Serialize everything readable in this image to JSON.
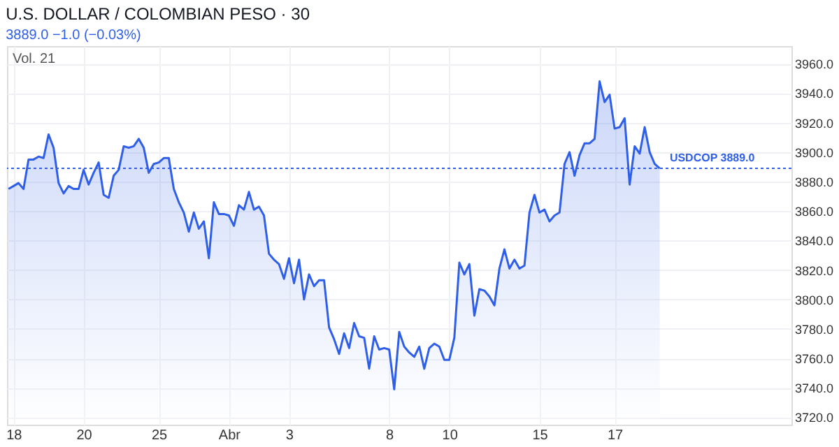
{
  "chart_data": {
    "type": "area",
    "title": "U.S. DOLLAR / COLOMBIAN PESO · 30",
    "subtitle": "3889.0 −1.0 (−0.03%)",
    "annotations": [
      "Vol. 21"
    ],
    "categories": [
      null,
      "18",
      null,
      null,
      null,
      null,
      null,
      null,
      null,
      null,
      null,
      null,
      null,
      null,
      null,
      "20",
      null,
      null,
      null,
      null,
      null,
      null,
      null,
      null,
      null,
      null,
      null,
      null,
      null,
      null,
      "25",
      null,
      null,
      null,
      null,
      null,
      null,
      null,
      null,
      null,
      null,
      null,
      null,
      null,
      "Abr",
      null,
      null,
      null,
      null,
      null,
      null,
      null,
      null,
      null,
      null,
      null,
      "3",
      null,
      null,
      null,
      null,
      null,
      null,
      null,
      null,
      null,
      null,
      null,
      null,
      null,
      null,
      null,
      null,
      null,
      null,
      null,
      "8",
      null,
      null,
      null,
      null,
      null,
      null,
      null,
      null,
      null,
      null,
      null,
      "10",
      null,
      null,
      null,
      null,
      null,
      null,
      null,
      null,
      null,
      null,
      null,
      null,
      null,
      null,
      null,
      null,
      null,
      "15",
      null,
      null,
      null,
      null,
      null,
      null,
      null,
      null,
      null,
      null,
      null,
      null,
      null,
      null,
      "17",
      null,
      null,
      null,
      null,
      null,
      null,
      null,
      null,
      null
    ],
    "series": [
      {
        "color": "#2f5fe8",
        "values": [
          3875,
          3877,
          3879,
          3875,
          3895,
          3895,
          3897,
          3896,
          3912,
          3903,
          3879,
          3872,
          3877,
          3875,
          3875,
          3888,
          3878,
          3886,
          3893,
          3871,
          3869,
          3884,
          3888,
          3904,
          3903,
          3904,
          3909,
          3903,
          3886,
          3892,
          3893,
          3896,
          3896,
          3875,
          3866,
          3859,
          3846,
          3859,
          3848,
          3853,
          3828,
          3866,
          3858,
          3858,
          3857,
          3850,
          3864,
          3861,
          3873,
          3861,
          3863,
          3857,
          3831,
          3827,
          3824,
          3814,
          3828,
          3811,
          3827,
          3800,
          3817,
          3809,
          3813,
          3813,
          3781,
          3773,
          3763,
          3777,
          3767,
          3784,
          3775,
          3774,
          3753,
          3775,
          3766,
          3767,
          3766,
          3739,
          3778,
          3768,
          3764,
          3761,
          3768,
          3753,
          3767,
          3770,
          3768,
          3759,
          3759,
          3774,
          3825,
          3817,
          3824,
          3789,
          3807,
          3806,
          3802,
          3796,
          3821,
          3834,
          3821,
          3827,
          3821,
          3823,
          3859,
          3871,
          3859,
          3861,
          3853,
          3857,
          3859,
          3892,
          3900,
          3884,
          3898,
          3906,
          3906,
          3909,
          3948,
          3934,
          3939,
          3916,
          3917,
          3923,
          3878,
          3904,
          3899,
          3917,
          3900,
          3892,
          3889
        ]
      }
    ],
    "ylim": [
      3715,
      3972
    ],
    "yticks": [
      {
        "value": 3720,
        "label": "3720.0"
      },
      {
        "value": 3740,
        "label": "3740.0"
      },
      {
        "value": 3760,
        "label": "3760.0"
      },
      {
        "value": 3780,
        "label": "3780.0"
      },
      {
        "value": 3800,
        "label": "3800.0"
      },
      {
        "value": 3820,
        "label": "3820.0"
      },
      {
        "value": 3840,
        "label": "3840.0"
      },
      {
        "value": 3860,
        "label": "3860.0"
      },
      {
        "value": 3880,
        "label": "3880.0"
      },
      {
        "value": 3900,
        "label": "3900.0"
      },
      {
        "value": 3920,
        "label": "3920.0"
      },
      {
        "value": 3940,
        "label": "3940.0"
      },
      {
        "value": 3960,
        "label": "3960.0"
      }
    ],
    "ref_lines": [
      {
        "axis": "y",
        "value": 3889,
        "label": "USDCOP 3889.0",
        "color": "#2f5fe8",
        "line_style": "dotted"
      }
    ],
    "grid": true,
    "line_style": "solid",
    "marker": "none"
  }
}
